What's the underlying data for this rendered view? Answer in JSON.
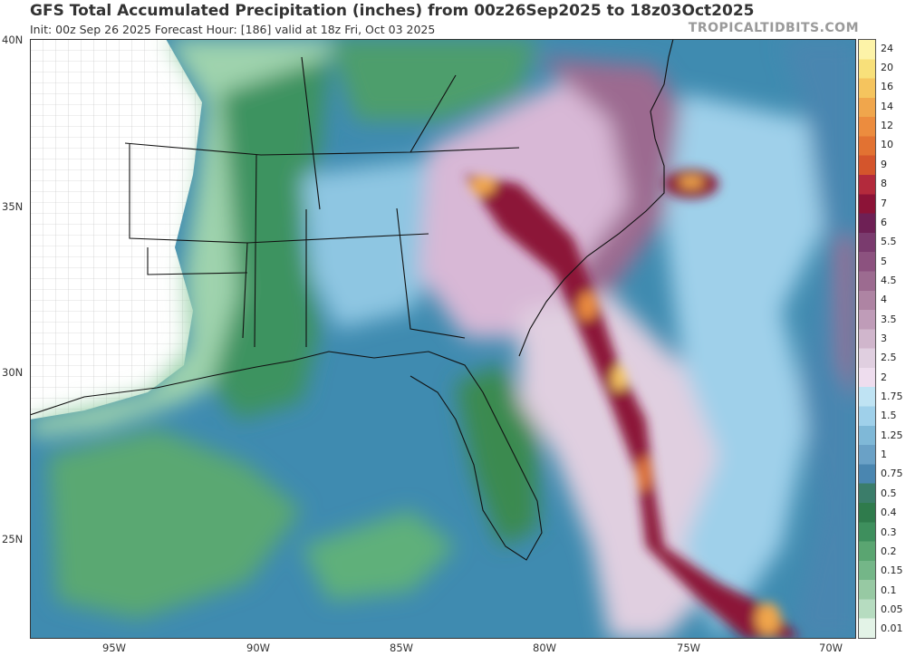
{
  "header": {
    "title": "GFS Total Accumulated Precipitation (inches) from 00z26Sep2025 to 18z03Oct2025",
    "subtitle": "Init: 00z Sep 26 2025   Forecast Hour: [186]   valid at 18z Fri, Oct 03 2025",
    "brand": "TROPICALTIDBITS.COM"
  },
  "map": {
    "lat_ticks": [
      "40N",
      "35N",
      "30N",
      "25N"
    ],
    "lon_ticks": [
      "95W",
      "90W",
      "85W",
      "80W",
      "75W",
      "70W"
    ]
  },
  "legend": {
    "levels": [
      "24",
      "20",
      "16",
      "14",
      "12",
      "10",
      "9",
      "8",
      "7",
      "6",
      "5.5",
      "5",
      "4.5",
      "4",
      "3.5",
      "3",
      "2.5",
      "2",
      "1.75",
      "1.5",
      "1.25",
      "1",
      "0.75",
      "0.5",
      "0.4",
      "0.3",
      "0.2",
      "0.15",
      "0.1",
      "0.05",
      "0.01"
    ],
    "colors": [
      "#fdf3a8",
      "#f8e07a",
      "#f5c45e",
      "#f0a64c",
      "#ec8c3e",
      "#e27232",
      "#d4552c",
      "#b32a3c",
      "#8c1337",
      "#6e2055",
      "#7a3b6e",
      "#8c527f",
      "#9c6b90",
      "#ae84a3",
      "#bf9cb8",
      "#d0b6cc",
      "#e0cfe0",
      "#eeddee",
      "#bfe3f3",
      "#9fd0ea",
      "#7fb8d7",
      "#6aa1c6",
      "#4a86b0",
      "#3b7d6a",
      "#2f7b4c",
      "#3e8f5d",
      "#5aa571",
      "#74b688",
      "#97c9a3",
      "#b6dcc0",
      "#e3f3e7"
    ]
  }
}
